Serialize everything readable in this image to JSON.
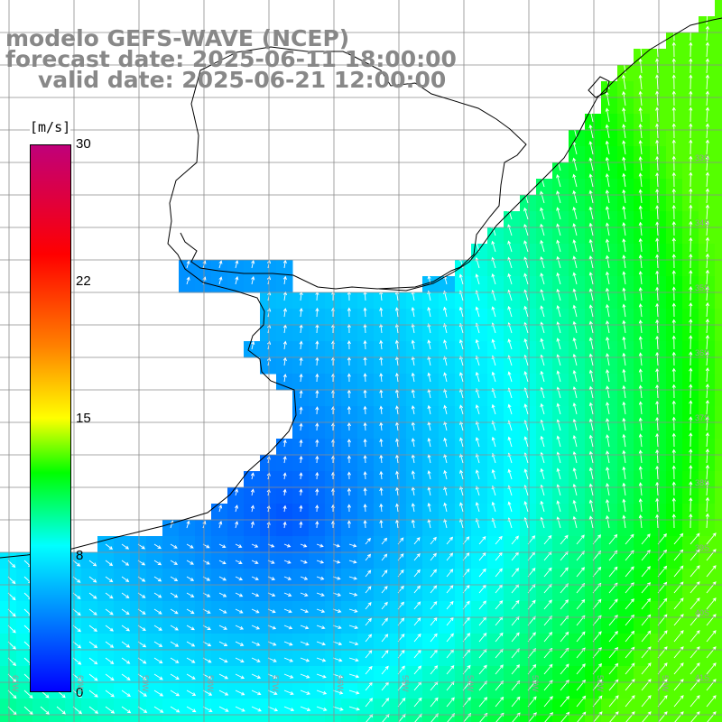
{
  "title": {
    "line1": "modelo GEFS-WAVE (NCEP)",
    "line2": "forecast date: 2025-06-11 18:00:00",
    "line3": "valid date: 2025-06-21 12:00:00"
  },
  "colorbar": {
    "unit": "[m/s]",
    "min": 0,
    "max": 30,
    "ticks": [
      "30",
      "22",
      "15",
      "8",
      "0"
    ],
    "tick_values": [
      30,
      22,
      15,
      8,
      0
    ],
    "stops": [
      "#0000ff",
      "#00ffff",
      "#00ff00",
      "#ffff00",
      "#ff8000",
      "#ff0000",
      "#c0007a"
    ],
    "stop_values": [
      0,
      8,
      12,
      15,
      19,
      24,
      30
    ]
  },
  "map": {
    "region": "southern Brazil / Uruguay / Río de la Plata",
    "lon_range": [
      -61,
      -50.5
    ],
    "lat_range": [
      -41.5,
      -30.5
    ],
    "lat_labels": [
      "33S",
      "34S",
      "35S",
      "36S",
      "37S",
      "38S",
      "39S",
      "40S",
      "41S"
    ],
    "lon_labels": [
      "61W",
      "60W",
      "59W",
      "58W",
      "57W",
      "56W",
      "55W",
      "54W",
      "53W",
      "52W",
      "51W"
    ],
    "land_color": "#ffffff",
    "grid_color": "#8c8c8c"
  }
}
